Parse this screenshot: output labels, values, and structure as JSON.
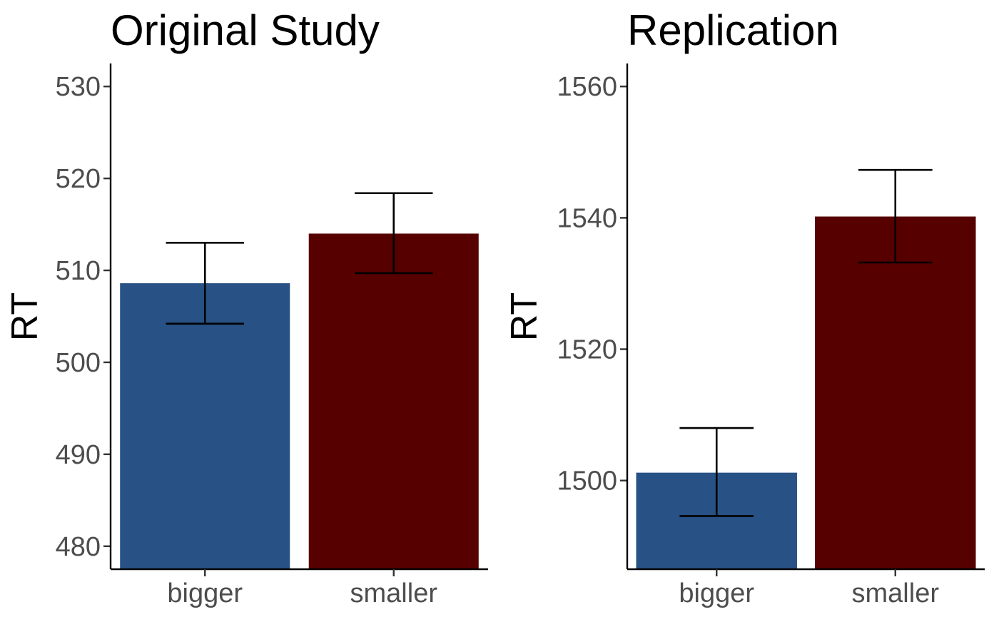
{
  "chart_data": [
    {
      "type": "bar",
      "title": "Original Study",
      "ylabel": "RT",
      "xlabel": "",
      "categories": [
        "bigger",
        "smaller"
      ],
      "values": [
        508.6,
        514.0
      ],
      "error_low": [
        504.2,
        509.7
      ],
      "error_high": [
        513.0,
        518.4
      ],
      "ylim": [
        477.5,
        532.5
      ],
      "yticks": [
        480,
        490,
        500,
        510,
        520,
        530
      ],
      "colors": [
        "#285185",
        "#560000"
      ],
      "grid": false,
      "legend": "none"
    },
    {
      "type": "bar",
      "title": "Replication",
      "ylabel": "RT",
      "xlabel": "",
      "categories": [
        "bigger",
        "smaller"
      ],
      "values": [
        1501.2,
        1540.2
      ],
      "error_low": [
        1494.6,
        1533.2
      ],
      "error_high": [
        1508.0,
        1547.3
      ],
      "ylim": [
        1486.5,
        1563.5
      ],
      "yticks": [
        1500,
        1520,
        1540,
        1560
      ],
      "colors": [
        "#285185",
        "#560000"
      ],
      "grid": false,
      "legend": "none"
    }
  ]
}
